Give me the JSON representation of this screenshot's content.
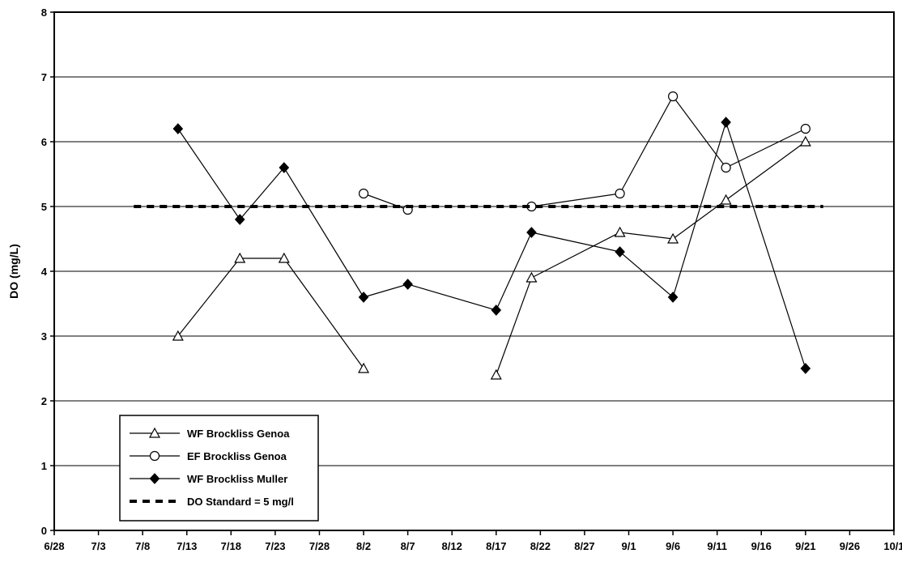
{
  "chart_data": {
    "type": "line",
    "ylabel": "DO (mg/L)",
    "xlabel": "",
    "title": "",
    "xlim": [
      "6/28",
      "10/1"
    ],
    "ylim": [
      0,
      8
    ],
    "y_ticks": [
      0,
      1,
      2,
      3,
      4,
      5,
      6,
      7,
      8
    ],
    "x_ticks": [
      "6/28",
      "7/3",
      "7/8",
      "7/13",
      "7/18",
      "7/23",
      "7/28",
      "8/2",
      "8/7",
      "8/12",
      "8/17",
      "8/22",
      "8/27",
      "9/1",
      "9/6",
      "9/11",
      "9/16",
      "9/21",
      "9/26",
      "10/1"
    ],
    "grid": "horizontal",
    "legend_position": "bottom-left",
    "series": [
      {
        "name": "WF Brockliss Genoa",
        "marker": "open-triangle",
        "color": "#000000",
        "segments": [
          [
            [
              "7/12",
              3.0
            ],
            [
              "7/19",
              4.2
            ],
            [
              "7/24",
              4.2
            ],
            [
              "8/2",
              2.5
            ]
          ],
          [
            [
              "8/17",
              2.4
            ],
            [
              "8/21",
              3.9
            ],
            [
              "8/31",
              4.6
            ],
            [
              "9/6",
              4.5
            ],
            [
              "9/12",
              5.1
            ],
            [
              "9/21",
              6.0
            ]
          ]
        ]
      },
      {
        "name": "EF Brockliss Genoa",
        "marker": "open-circle",
        "color": "#000000",
        "segments": [
          [
            [
              "8/2",
              5.2
            ],
            [
              "8/7",
              4.95
            ]
          ],
          [
            [
              "8/21",
              5.0
            ],
            [
              "8/31",
              5.2
            ],
            [
              "9/6",
              6.7
            ],
            [
              "9/12",
              5.6
            ],
            [
              "9/21",
              6.2
            ]
          ]
        ]
      },
      {
        "name": "WF Brockliss Muller",
        "marker": "filled-diamond",
        "color": "#000000",
        "segments": [
          [
            [
              "7/12",
              6.2
            ],
            [
              "7/19",
              4.8
            ],
            [
              "7/24",
              5.6
            ],
            [
              "8/2",
              3.6
            ],
            [
              "8/7",
              3.8
            ],
            [
              "8/17",
              3.4
            ],
            [
              "8/21",
              4.6
            ],
            [
              "8/31",
              4.3
            ],
            [
              "9/6",
              3.6
            ],
            [
              "9/12",
              6.3
            ],
            [
              "9/21",
              2.5
            ]
          ]
        ]
      },
      {
        "name": "DO Standard = 5 mg/l",
        "marker": "none",
        "style": "dashed",
        "color": "#000000",
        "segments": [
          [
            [
              "7/7",
              5.0
            ],
            [
              "9/23",
              5.0
            ]
          ]
        ]
      }
    ]
  }
}
